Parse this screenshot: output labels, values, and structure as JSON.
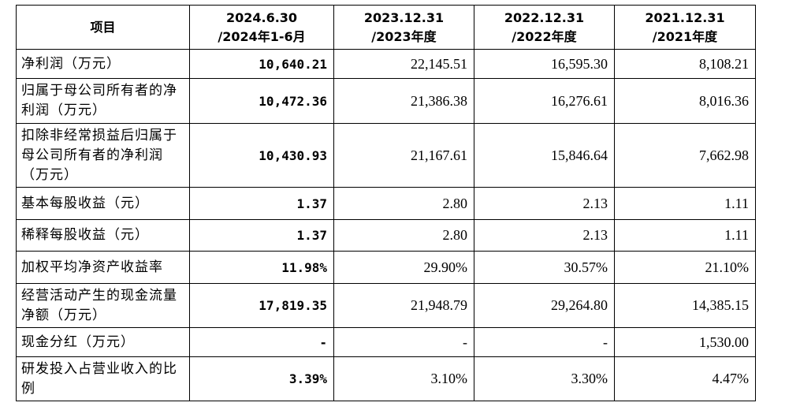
{
  "table": {
    "headers": [
      {
        "line1": "项目",
        "line2": ""
      },
      {
        "line1": "2024.6.30",
        "line2": "/2024年1-6月"
      },
      {
        "line1": "2023.12.31",
        "line2": "/2023年度"
      },
      {
        "line1": "2022.12.31",
        "line2": "/2022年度"
      },
      {
        "line1": "2021.12.31",
        "line2": "/2021年度"
      }
    ],
    "rows": [
      {
        "item": "净利润（万元）",
        "values": [
          "10,640.21",
          "22,145.51",
          "16,595.30",
          "8,108.21"
        ]
      },
      {
        "item": "归属于母公司所有者的净利润（万元）",
        "values": [
          "10,472.36",
          "21,386.38",
          "16,276.61",
          "8,016.36"
        ]
      },
      {
        "item": "扣除非经常损益后归属于母公司所有者的净利润（万元）",
        "values": [
          "10,430.93",
          "21,167.61",
          "15,846.64",
          "7,662.98"
        ]
      },
      {
        "item": "基本每股收益（元）",
        "values": [
          "1.37",
          "2.80",
          "2.13",
          "1.11"
        ]
      },
      {
        "item": "稀释每股收益（元）",
        "values": [
          "1.37",
          "2.80",
          "2.13",
          "1.11"
        ]
      },
      {
        "item": "加权平均净资产收益率",
        "values": [
          "11.98%",
          "29.90%",
          "30.57%",
          "21.10%"
        ]
      },
      {
        "item": "经营活动产生的现金流量净额（万元）",
        "values": [
          "17,819.35",
          "21,948.79",
          "29,264.80",
          "14,385.15"
        ]
      },
      {
        "item": "现金分红（万元）",
        "values": [
          "-",
          "-",
          "-",
          "1,530.00"
        ]
      },
      {
        "item": "研发投入占营业收入的比例",
        "values": [
          "3.39%",
          "3.10%",
          "3.30%",
          "4.47%"
        ]
      }
    ]
  }
}
